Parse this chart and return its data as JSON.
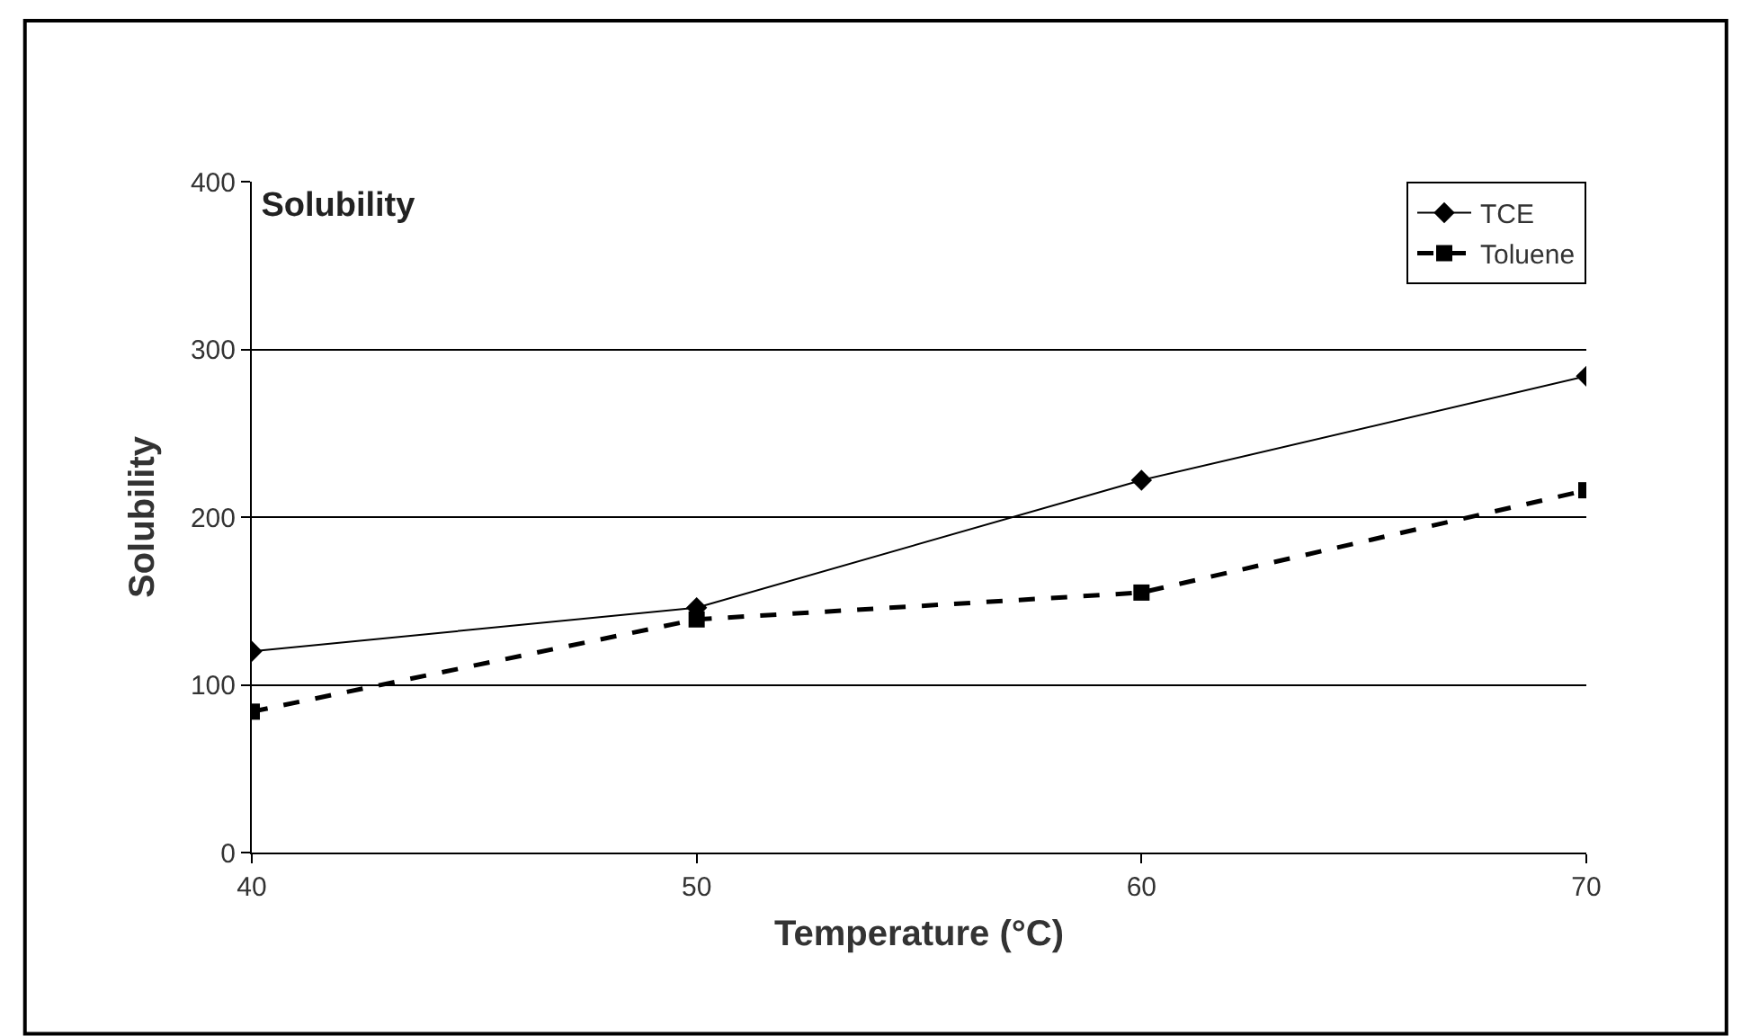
{
  "chart_data": {
    "type": "line",
    "title": "Solubility",
    "xlabel": "Temperature (°C)",
    "ylabel": "Solubility",
    "x": [
      40,
      50,
      60,
      70
    ],
    "series": [
      {
        "name": "TCE",
        "color": "#000000",
        "values": [
          120,
          146,
          222,
          284
        ],
        "marker": "diamond",
        "line_style": "solid"
      },
      {
        "name": "Toluene",
        "color": "#000000",
        "values": [
          84,
          139,
          155,
          216
        ],
        "marker": "square",
        "line_style": "dashed"
      }
    ],
    "xlim": [
      40,
      70
    ],
    "xticks": [
      40,
      50,
      60,
      70
    ],
    "ylim": [
      0,
      400
    ],
    "yticks": [
      0,
      100,
      200,
      300,
      400
    ],
    "grid": "y",
    "legend": "top right"
  }
}
